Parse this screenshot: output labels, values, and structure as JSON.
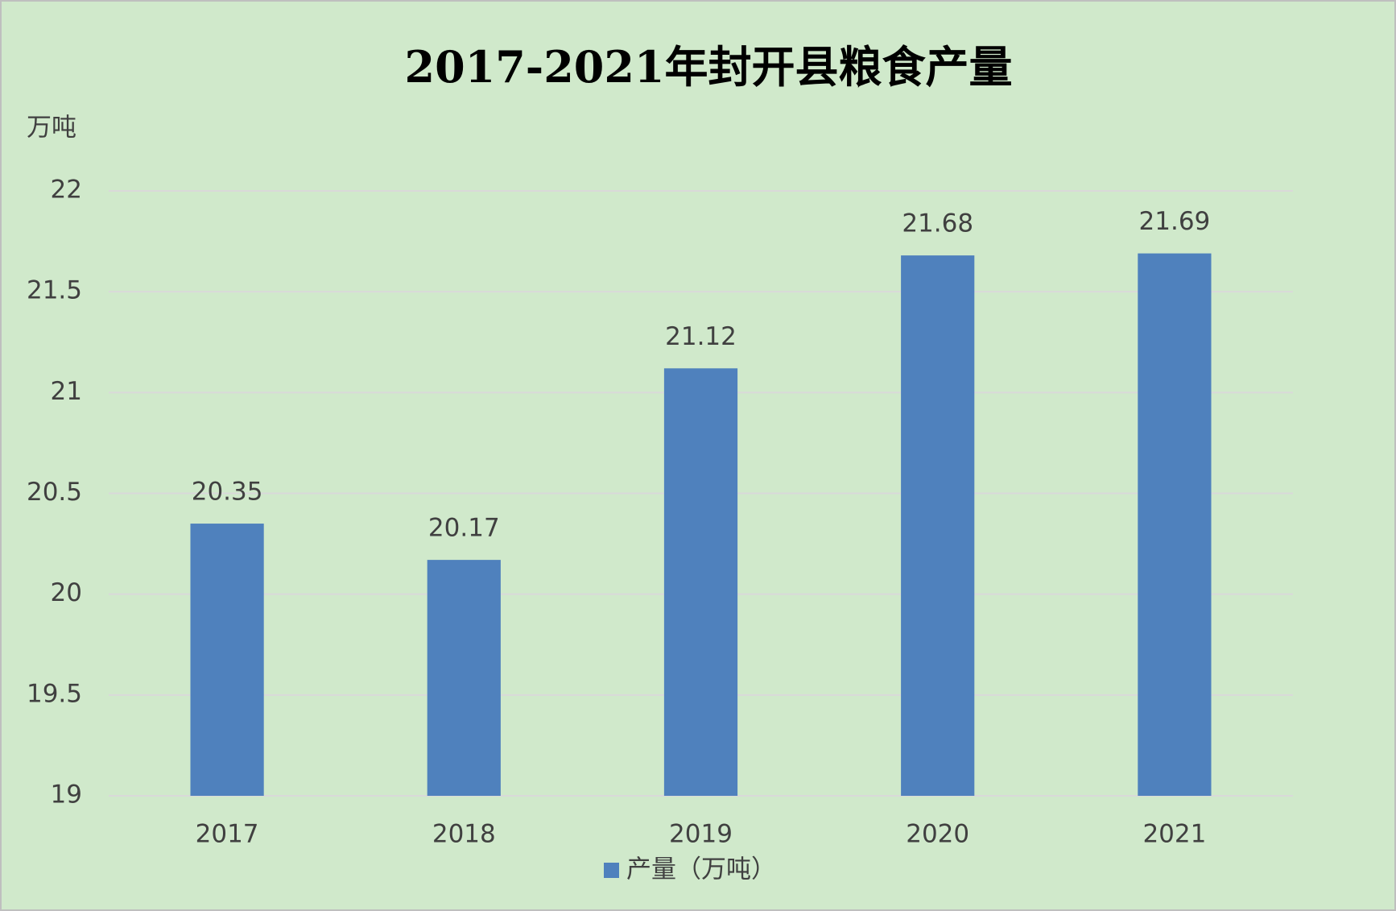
{
  "chart_data": {
    "type": "bar",
    "title": "2017-2021年封开县粮食产量",
    "y_label": "万吨",
    "categories": [
      "2017",
      "2018",
      "2019",
      "2020",
      "2021"
    ],
    "series": [
      {
        "name": "产量（万吨）",
        "color": "#4f81bd",
        "values": [
          20.35,
          20.17,
          21.12,
          21.68,
          21.69
        ]
      }
    ],
    "ylim": [
      19,
      22
    ],
    "yticks": [
      19,
      19.5,
      20,
      20.5,
      21,
      21.5,
      22
    ],
    "grid": true,
    "legend": "bottom"
  }
}
